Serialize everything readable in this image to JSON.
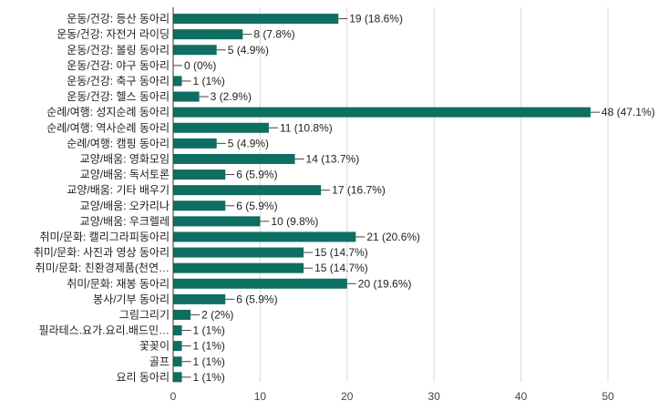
{
  "chart_data": {
    "type": "bar",
    "orientation": "horizontal",
    "categories": [
      "운동/건강: 등산 동아리",
      "운동/건강: 자전거 라이딩",
      "운동/건강: 볼링 동아리",
      "운동/건강: 야구 동아리",
      "운동/건강: 축구 동아리",
      "운동/건강: 헬스 동아리",
      "순례/여행: 성지순례 동아리",
      "순례/여행: 역사순례 동아리",
      "순례/여행: 캠핑 동아리",
      "교양/배움: 영화모임",
      "교양/배움: 독서토론",
      "교양/배움: 기타 배우기",
      "교양/배움: 오카리나",
      "교양/배움: 우크렐레",
      "취미/문화: 캘리그라피동아리",
      "취미/문화: 사진과 영상 동아리",
      "취미/문화: 친환경제품(천연…",
      "취미/문화: 재봉 동아리",
      "봉사/기부 동아리",
      "그림그리기",
      "필라테스.요가.요리.배드민…",
      "꽃꽂이",
      "골프",
      "요리 동아리"
    ],
    "values": [
      19,
      8,
      5,
      0,
      1,
      3,
      48,
      11,
      5,
      14,
      6,
      17,
      6,
      10,
      21,
      15,
      15,
      20,
      6,
      2,
      1,
      1,
      1,
      1
    ],
    "value_labels": [
      "19 (18.6%)",
      "8 (7.8%)",
      "5 (4.9%)",
      "0 (0%)",
      "1 (1%)",
      "3 (2.9%)",
      "48 (47.1%)",
      "11 (10.8%)",
      "5 (4.9%)",
      "14 (13.7%)",
      "6 (5.9%)",
      "17 (16.7%)",
      "6 (5.9%)",
      "10 (9.8%)",
      "21 (20.6%)",
      "15 (14.7%)",
      "15 (14.7%)",
      "20 (19.6%)",
      "6 (5.9%)",
      "2 (2%)",
      "1 (1%)",
      "1 (1%)",
      "1 (1%)",
      "1 (1%)"
    ],
    "xlim": [
      0,
      50
    ],
    "xticks": [
      0,
      10,
      20,
      30,
      40,
      50
    ],
    "grid": true,
    "bar_color": "#0f6e62",
    "title": "",
    "xlabel": "",
    "ylabel": ""
  }
}
